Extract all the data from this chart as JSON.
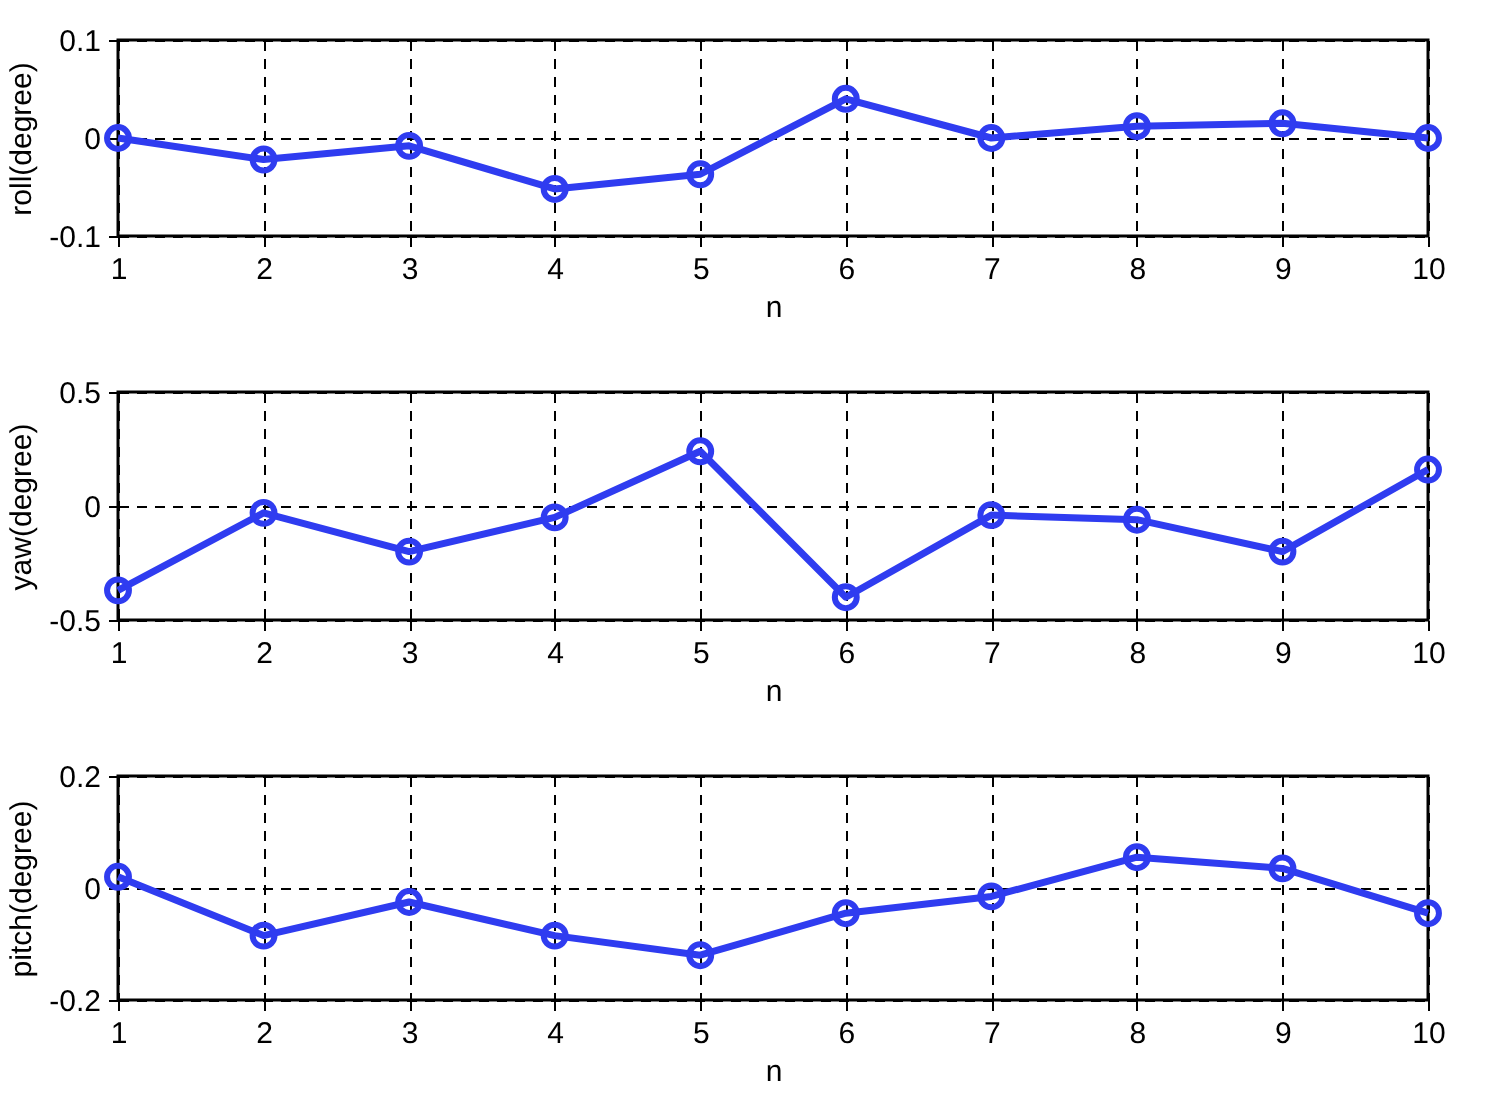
{
  "chart_data": [
    {
      "type": "line",
      "xlabel": "n",
      "ylabel": "roll(degree)",
      "x": [
        1,
        2,
        3,
        4,
        5,
        6,
        7,
        8,
        9,
        10
      ],
      "series": [
        {
          "color": "#2f3cf0",
          "values": [
            0,
            -0.022,
            -0.008,
            -0.052,
            -0.037,
            0.04,
            0,
            0.012,
            0.015,
            0
          ]
        }
      ],
      "xlim": [
        1,
        10
      ],
      "xticks": [
        1,
        2,
        3,
        4,
        5,
        6,
        7,
        8,
        9,
        10
      ],
      "ylim": [
        -0.1,
        0.1
      ],
      "yticks": [
        -0.1,
        0,
        0.1
      ],
      "grid": true,
      "marker": "circle",
      "line_style": "solid"
    },
    {
      "type": "line",
      "xlabel": "n",
      "ylabel": "yaw(degree)",
      "x": [
        1,
        2,
        3,
        4,
        5,
        6,
        7,
        8,
        9,
        10
      ],
      "series": [
        {
          "color": "#2f3cf0",
          "values": [
            -0.37,
            -0.03,
            -0.2,
            -0.05,
            0.24,
            -0.4,
            -0.04,
            -0.06,
            -0.2,
            0.16
          ]
        }
      ],
      "xlim": [
        1,
        10
      ],
      "xticks": [
        1,
        2,
        3,
        4,
        5,
        6,
        7,
        8,
        9,
        10
      ],
      "ylim": [
        -0.5,
        0.5
      ],
      "yticks": [
        -0.5,
        0,
        0.5
      ],
      "grid": true,
      "marker": "circle",
      "line_style": "solid"
    },
    {
      "type": "line",
      "xlabel": "n",
      "ylabel": "pitch(degree)",
      "x": [
        1,
        2,
        3,
        4,
        5,
        6,
        7,
        8,
        9,
        10
      ],
      "series": [
        {
          "color": "#2f3cf0",
          "values": [
            0.02,
            -0.085,
            -0.025,
            -0.085,
            -0.12,
            -0.045,
            -0.015,
            0.055,
            0.035,
            -0.045
          ]
        }
      ],
      "xlim": [
        1,
        10
      ],
      "xticks": [
        1,
        2,
        3,
        4,
        5,
        6,
        7,
        8,
        9,
        10
      ],
      "ylim": [
        -0.2,
        0.2
      ],
      "yticks": [
        -0.2,
        0,
        0.2
      ],
      "grid": true,
      "marker": "circle",
      "line_style": "solid"
    }
  ]
}
